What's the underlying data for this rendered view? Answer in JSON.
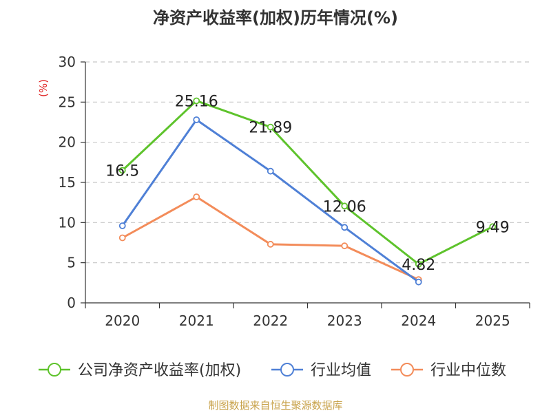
{
  "chart_data": {
    "type": "line",
    "title": "净资产收益率(加权)历年情况(%)",
    "ylabel": "(%)",
    "xlabel": "",
    "categories": [
      "2020",
      "2021",
      "2022",
      "2023",
      "2024",
      "2025"
    ],
    "ylim": [
      0,
      30
    ],
    "yticks": [
      0,
      5,
      10,
      15,
      20,
      25,
      30
    ],
    "grid": true,
    "legend_position": "bottom",
    "series": [
      {
        "name": "公司净资产收益率(加权)",
        "color": "#5ec32c",
        "values": [
          16.5,
          25.16,
          21.89,
          12.06,
          4.82,
          9.49
        ],
        "labels": [
          "16.5",
          "25.16",
          "21.89",
          "12.06",
          "4.82",
          "9.49"
        ]
      },
      {
        "name": "行业均值",
        "color": "#4f80d6",
        "values": [
          9.6,
          22.8,
          16.4,
          9.4,
          2.6,
          null
        ]
      },
      {
        "name": "行业中位数",
        "color": "#f38c5a",
        "values": [
          8.1,
          13.2,
          7.3,
          7.1,
          2.9,
          null
        ]
      }
    ],
    "source": "制图数据来自恒生聚源数据库"
  }
}
